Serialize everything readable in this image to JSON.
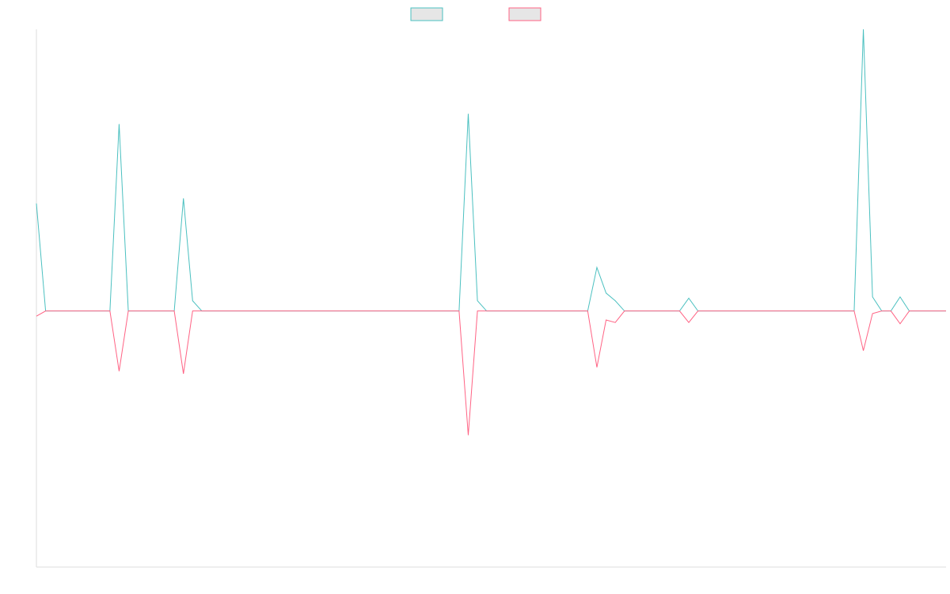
{
  "chart_data": {
    "type": "line",
    "x_count": 100,
    "ylim": [
      -1,
      1.1
    ],
    "grid": false,
    "legend_placement": "top-center",
    "series": [
      {
        "name": "",
        "color": "#4bc0c0",
        "fill": "#e6e6e6",
        "points": [
          [
            0,
            0.42
          ],
          [
            9,
            0.73
          ],
          [
            16,
            0.44
          ],
          [
            17,
            0.04
          ],
          [
            47,
            0.77
          ],
          [
            48,
            0.04
          ],
          [
            61,
            0.17
          ],
          [
            62,
            0.07
          ],
          [
            63,
            0.04
          ],
          [
            71,
            0.05
          ],
          [
            90,
            1.1
          ],
          [
            91,
            0.055
          ],
          [
            94,
            0.055
          ]
        ]
      },
      {
        "name": "",
        "color": "#ff6384",
        "fill": "#e6e6e6",
        "points": [
          [
            0,
            -0.02
          ],
          [
            9,
            -0.235
          ],
          [
            16,
            -0.245
          ],
          [
            47,
            -0.485
          ],
          [
            61,
            -0.22
          ],
          [
            62,
            -0.035
          ],
          [
            63,
            -0.045
          ],
          [
            71,
            -0.045
          ],
          [
            90,
            -0.155
          ],
          [
            91,
            -0.01
          ],
          [
            94,
            -0.05
          ]
        ]
      }
    ]
  }
}
